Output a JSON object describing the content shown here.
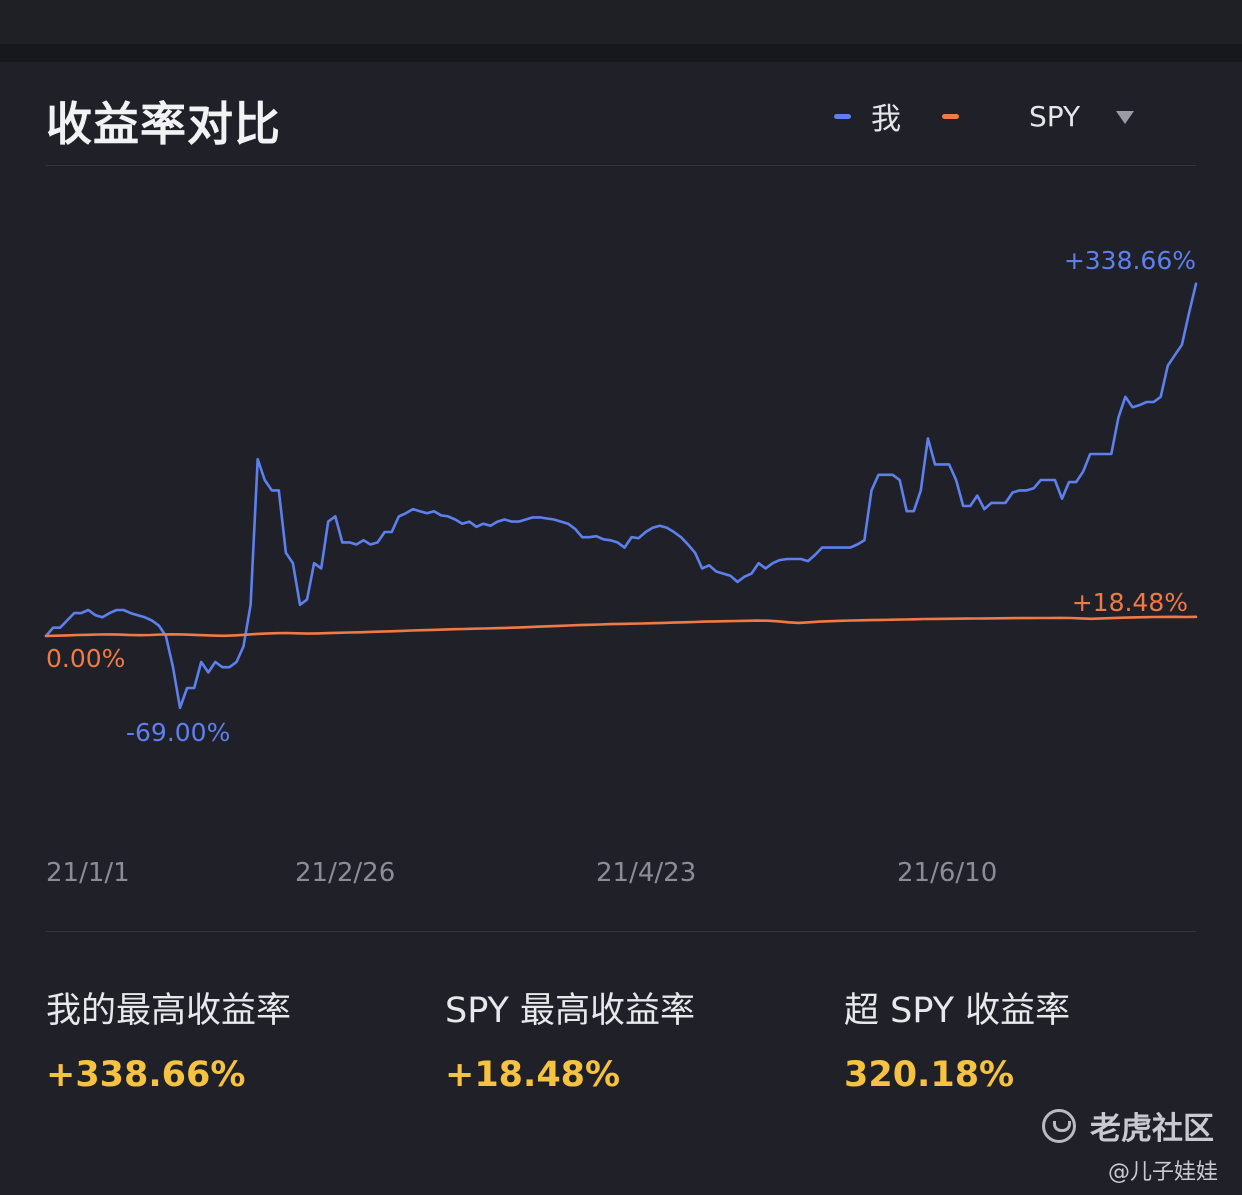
{
  "title": "收益率对比",
  "legend": {
    "me": "我",
    "benchmark": "SPY",
    "benchmark_dropdown_icon": "triangle-down-icon"
  },
  "colors": {
    "me": "#5d80ee",
    "spy": "#f07a45",
    "highlight": "#f5c242"
  },
  "chart_data": {
    "type": "line",
    "x_ticks": [
      "21/1/1",
      "21/2/26",
      "21/4/23",
      "21/6/10"
    ],
    "ylim": [
      -140,
      400
    ],
    "grid": false,
    "legend_position": "top-right",
    "series": [
      {
        "name": "我",
        "color": "#5d80ee",
        "values": [
          0,
          8,
          8,
          15,
          22,
          22,
          25,
          20,
          18,
          22,
          25,
          25,
          22,
          20,
          18,
          15,
          10,
          0,
          -30,
          -69,
          -50,
          -50,
          -25,
          -35,
          -25,
          -30,
          -30,
          -25,
          -10,
          30,
          170,
          150,
          140,
          140,
          80,
          70,
          30,
          35,
          70,
          65,
          110,
          115,
          90,
          90,
          88,
          92,
          88,
          90,
          100,
          100,
          115,
          118,
          122,
          120,
          118,
          120,
          116,
          115,
          112,
          108,
          110,
          105,
          108,
          106,
          110,
          112,
          110,
          110,
          112,
          114,
          114,
          113,
          112,
          110,
          108,
          103,
          95,
          95,
          96,
          93,
          92,
          90,
          85,
          95,
          94,
          100,
          104,
          106,
          104,
          100,
          95,
          88,
          80,
          65,
          68,
          62,
          60,
          58,
          52,
          57,
          60,
          70,
          65,
          70,
          73,
          74,
          74,
          74,
          72,
          78,
          85,
          85,
          85,
          85,
          85,
          88,
          92,
          140,
          155,
          155,
          155,
          150,
          120,
          120,
          140,
          190,
          165,
          165,
          165,
          150,
          125,
          125,
          135,
          122,
          128,
          128,
          128,
          138,
          140,
          140,
          142,
          150,
          150,
          150,
          132,
          148,
          148,
          158,
          175,
          175,
          175,
          175,
          210,
          230,
          220,
          222,
          225,
          225,
          230,
          260,
          270,
          280,
          310,
          338.66
        ]
      },
      {
        "name": "SPY",
        "color": "#f07a45",
        "values": [
          0,
          0.3,
          0.6,
          1.0,
          1.2,
          1.4,
          1.5,
          1.3,
          1.0,
          0.8,
          1.0,
          1.4,
          1.6,
          1.5,
          1.2,
          0.8,
          0.4,
          0.2,
          0.6,
          1.2,
          1.8,
          2.3,
          2.7,
          2.9,
          2.6,
          2.3,
          2.5,
          2.8,
          3.1,
          3.4,
          3.6,
          3.9,
          4.2,
          4.5,
          4.9,
          5.3,
          5.6,
          5.9,
          6.2,
          6.5,
          6.7,
          7.0,
          7.2,
          7.5,
          7.8,
          8.1,
          8.5,
          8.9,
          9.3,
          9.7,
          10.1,
          10.5,
          10.8,
          11.1,
          11.4,
          11.6,
          11.8,
          12.0,
          12.3,
          12.6,
          12.9,
          13.2,
          13.5,
          13.8,
          14.0,
          14.2,
          14.4,
          14.6,
          14.8,
          14.7,
          14.1,
          13.2,
          12.6,
          13.2,
          13.8,
          14.2,
          14.6,
          14.9,
          15.1,
          15.3,
          15.5,
          15.7,
          15.9,
          16.1,
          16.3,
          16.4,
          16.5,
          16.6,
          16.7,
          16.8,
          16.9,
          17.0,
          17.1,
          17.2,
          17.2,
          17.3,
          17.3,
          17.4,
          17.3,
          16.9,
          16.5,
          16.9,
          17.2,
          17.6,
          17.9,
          18.1,
          18.3,
          18.4,
          18.48,
          18.3,
          18.48
        ]
      }
    ],
    "annotations": {
      "me_max": "+338.66%",
      "me_min": "-69.00%",
      "spy_max": "+18.48%",
      "spy_start": "0.00%"
    }
  },
  "stats": [
    {
      "label": "我的最高收益率",
      "value": "+338.66%"
    },
    {
      "label": "SPY 最高收益率",
      "value": "+18.48%"
    },
    {
      "label": "超 SPY 收益率",
      "value": "320.18%"
    }
  ],
  "watermark": {
    "brand": "老虎社区",
    "author": "@儿子娃娃",
    "icon": "tiger-logo-icon"
  }
}
